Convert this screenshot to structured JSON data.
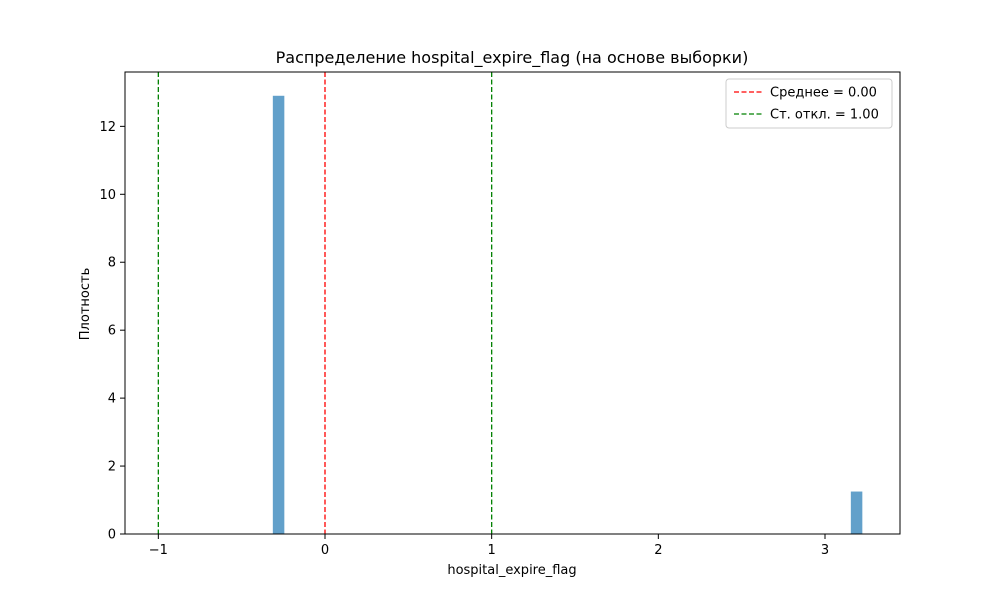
{
  "chart_data": {
    "type": "bar",
    "title": "Распределение hospital_expire_flag (на основе выборки)",
    "xlabel": "hospital_expire_flag",
    "ylabel": "Плотность",
    "xlim": [
      -1.2,
      3.45
    ],
    "ylim": [
      0,
      13.6
    ],
    "xticks": [
      -1,
      0,
      1,
      2,
      3
    ],
    "yticks": [
      0,
      2,
      4,
      6,
      8,
      10,
      12
    ],
    "bar_color": "#1f77b4",
    "bar_alpha": 0.7,
    "bars": [
      {
        "x0": -0.313,
        "x1": -0.244,
        "value": 12.9
      },
      {
        "x0": 3.155,
        "x1": 3.224,
        "value": 1.25
      }
    ],
    "reference_lines": [
      {
        "name": "Среднее = 0.00",
        "x": 0.0,
        "color": "#ff0000",
        "style": "dashed"
      },
      {
        "name": "Ст. откл. = 1.00",
        "x": -1.0,
        "color": "#008000",
        "style": "dashed"
      },
      {
        "name": "Ст. откл. = 1.00",
        "x": 1.0,
        "color": "#008000",
        "style": "dashed",
        "in_legend": false
      }
    ],
    "legend": {
      "placement": "top-right",
      "entries": [
        {
          "label": "Среднее = 0.00",
          "color": "#ff0000",
          "style": "dashed"
        },
        {
          "label": "Ст. откл. = 1.00",
          "color": "#008000",
          "style": "dashed"
        }
      ]
    },
    "grid": false
  }
}
